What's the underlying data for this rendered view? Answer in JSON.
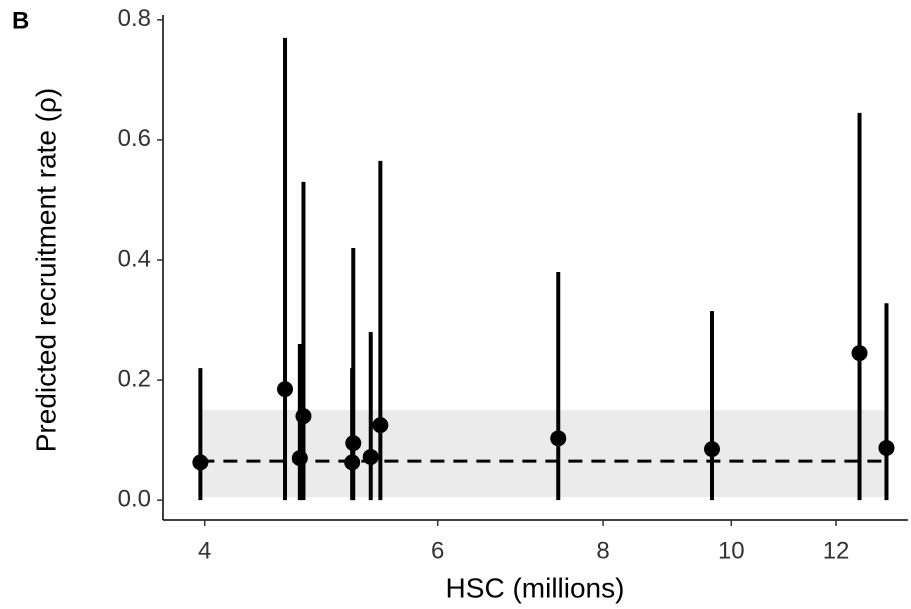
{
  "chart_data": {
    "type": "errorbar",
    "panel_label": "B",
    "x_label": "HSC (millions)",
    "y_label": "Predicted recruitment rate (ρ)",
    "x_scale": "log",
    "xlim": [
      3.72,
      13.6
    ],
    "xticks": [
      4,
      6,
      8,
      10,
      12
    ],
    "ylim": [
      -0.033,
      0.808
    ],
    "yticks": [
      {
        "value": 0,
        "label": "0.0"
      },
      {
        "value": 0.2,
        "label": "0.2"
      },
      {
        "value": 0.4,
        "label": "0.4"
      },
      {
        "value": 0.6,
        "label": "0.6"
      },
      {
        "value": 0.8,
        "label": "0.8"
      }
    ],
    "color": "#000000",
    "band": {
      "lower": 0.005,
      "upper": 0.15,
      "color": "#ebebeb"
    },
    "reference": 0.065,
    "series": {
      "x": [
        3.97,
        4.6,
        4.72,
        4.75,
        5.17,
        5.18,
        5.34,
        5.43,
        7.4,
        9.67,
        12.5,
        13.1
      ],
      "y": [
        0.063,
        0.185,
        0.07,
        0.14,
        0.063,
        0.095,
        0.072,
        0.125,
        0.103,
        0.085,
        0.245,
        0.087
      ],
      "lower": [
        0,
        0,
        0,
        0,
        0,
        0,
        0,
        0,
        0,
        0,
        0,
        0
      ],
      "upper": [
        0.22,
        0.77,
        0.26,
        0.53,
        0.22,
        0.42,
        0.28,
        0.565,
        0.38,
        0.315,
        0.645,
        0.328
      ]
    }
  }
}
